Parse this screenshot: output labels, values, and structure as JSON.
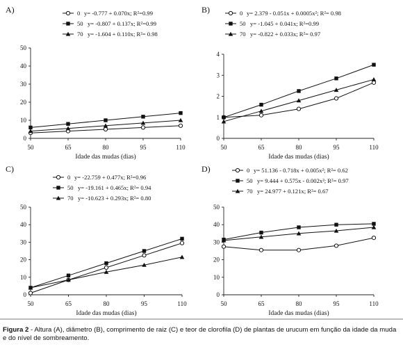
{
  "caption": {
    "label": "Figura 2",
    "text": " - Altura (A), diâmetro (B), comprimento de raiz (C) e teor de clorofila (D) de plantas de urucum em função da idade da muda e do nível de sombreamento."
  },
  "chart_data": [
    {
      "panel": "A)",
      "type": "line",
      "xlabel": "Idade das mudas (dias)",
      "ylabel": "",
      "x": [
        50,
        65,
        80,
        95,
        110
      ],
      "xlim": [
        50,
        110
      ],
      "ylim": [
        0,
        50
      ],
      "yticks": [
        0,
        10,
        20,
        30,
        40,
        50
      ],
      "legend_position": "top",
      "series": [
        {
          "name": "0",
          "equation": "y= -0.777 + 0.070x; R²=0.99",
          "marker": "circle",
          "values": [
            3,
            4,
            5,
            6,
            7
          ]
        },
        {
          "name": "50",
          "equation": "y= -0.807 + 0.137x; R²=0.99",
          "marker": "square",
          "values": [
            6,
            8,
            10,
            12,
            14
          ]
        },
        {
          "name": "70",
          "equation": "y= -1.604 + 0.110x; R²= 0.98",
          "marker": "triangle",
          "values": [
            4,
            5.5,
            7,
            8.5,
            10
          ]
        }
      ]
    },
    {
      "panel": "B)",
      "type": "line",
      "xlabel": "Idade das mudas (dias)",
      "ylabel": "",
      "x": [
        50,
        65,
        80,
        95,
        110
      ],
      "xlim": [
        50,
        110
      ],
      "ylim": [
        0,
        4
      ],
      "yticks": [
        0,
        1,
        2,
        3,
        4
      ],
      "legend_position": "top",
      "series": [
        {
          "name": "0",
          "equation": "y= 2.379 - 0.051x + 0.0005x²; R²= 0.98",
          "marker": "circle",
          "values": [
            1.0,
            1.1,
            1.4,
            1.9,
            2.65
          ]
        },
        {
          "name": "50",
          "equation": "y= -1.045 + 0.041x; R²=0.99",
          "marker": "square",
          "values": [
            1.0,
            1.6,
            2.25,
            2.85,
            3.5
          ]
        },
        {
          "name": "70",
          "equation": "y= -0.822 + 0.033x; R²= 0.97",
          "marker": "triangle",
          "values": [
            0.8,
            1.3,
            1.8,
            2.3,
            2.8
          ]
        }
      ]
    },
    {
      "panel": "C)",
      "type": "line",
      "xlabel": "Idade das mudas (dias)",
      "ylabel": "",
      "x": [
        50,
        65,
        80,
        95,
        110
      ],
      "xlim": [
        50,
        110
      ],
      "ylim": [
        0,
        50
      ],
      "yticks": [
        0,
        10,
        20,
        30,
        40,
        50
      ],
      "legend_position": "top",
      "series": [
        {
          "name": "0",
          "equation": "y= -22.759 + 0.477x; R²=0.96",
          "marker": "circle",
          "values": [
            1,
            8.5,
            15.5,
            22.5,
            29.5
          ]
        },
        {
          "name": "50",
          "equation": "y= -19.161 + 0.465x; R²= 0.94",
          "marker": "square",
          "values": [
            4,
            11,
            18,
            25,
            32
          ]
        },
        {
          "name": "70",
          "equation": "y= -10.623 + 0.293x; R²= 0.80",
          "marker": "triangle",
          "values": [
            4,
            8.5,
            13,
            17,
            21.5
          ]
        }
      ]
    },
    {
      "panel": "D)",
      "type": "line",
      "xlabel": "Idade das mudas (dias)",
      "ylabel": "",
      "x": [
        50,
        65,
        80,
        95,
        110
      ],
      "xlim": [
        50,
        110
      ],
      "ylim": [
        0,
        50
      ],
      "yticks": [
        0,
        10,
        20,
        30,
        40,
        50
      ],
      "legend_position": "top",
      "series": [
        {
          "name": "0",
          "equation": "y= 51.136 - 0.718x + 0.005x²; R²= 0.62",
          "marker": "circle",
          "values": [
            27.5,
            25.5,
            25.5,
            28,
            32.5
          ]
        },
        {
          "name": "50",
          "equation": "y= 9.444 + 0.575x - 0.002x²; R²= 0.97",
          "marker": "square",
          "values": [
            31.5,
            35.5,
            38.5,
            40,
            40.5
          ]
        },
        {
          "name": "70",
          "equation": "y= 24.977 + 0.121x; R²= 0.67",
          "marker": "triangle",
          "values": [
            31,
            33,
            35,
            36.5,
            38.5
          ]
        }
      ]
    }
  ]
}
